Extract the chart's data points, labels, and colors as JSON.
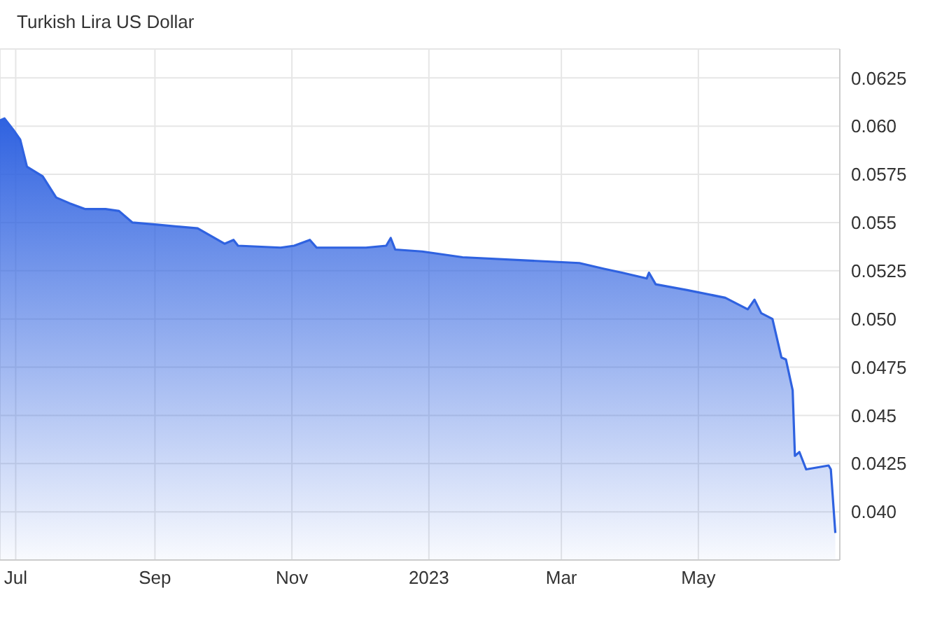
{
  "chart_data": {
    "type": "area",
    "title": "Turkish Lira US Dollar",
    "x": [
      "2022-06-24",
      "2022-06-26",
      "2022-06-30",
      "2022-07-03",
      "2022-07-06",
      "2022-07-13",
      "2022-07-19",
      "2022-07-25",
      "2022-08-01",
      "2022-08-10",
      "2022-08-16",
      "2022-08-22",
      "2022-09-01",
      "2022-09-20",
      "2022-09-26",
      "2022-10-02",
      "2022-10-06",
      "2022-10-08",
      "2022-10-27",
      "2022-11-02",
      "2022-11-09",
      "2022-11-12",
      "2022-12-04",
      "2022-12-13",
      "2022-12-15",
      "2022-12-17",
      "2022-12-29",
      "2023-01-16",
      "2023-03-09",
      "2023-03-20",
      "2023-03-28",
      "2023-04-08",
      "2023-04-09",
      "2023-04-12",
      "2023-04-26",
      "2023-05-13",
      "2023-05-23",
      "2023-05-26",
      "2023-05-29",
      "2023-06-03",
      "2023-06-07",
      "2023-06-09",
      "2023-06-12",
      "2023-06-13",
      "2023-06-15",
      "2023-06-18",
      "2023-06-23",
      "2023-06-28",
      "2023-06-29",
      "2023-07-01"
    ],
    "series": [
      {
        "color": "#2f62e0",
        "values": [
          0.0603,
          0.0604,
          0.0598,
          0.0593,
          0.0579,
          0.0574,
          0.0563,
          0.056,
          0.0557,
          0.0557,
          0.0556,
          0.055,
          0.0549,
          0.0547,
          0.0543,
          0.0539,
          0.0541,
          0.0538,
          0.0537,
          0.0538,
          0.0541,
          0.0537,
          0.0537,
          0.0538,
          0.0542,
          0.0536,
          0.0535,
          0.0532,
          0.0529,
          0.0526,
          0.0524,
          0.0521,
          0.0524,
          0.0518,
          0.0515,
          0.0511,
          0.0505,
          0.051,
          0.0503,
          0.05,
          0.048,
          0.0479,
          0.0463,
          0.0429,
          0.0431,
          0.0422,
          0.0423,
          0.0424,
          0.0422,
          0.0389
        ]
      }
    ],
    "xlim": [
      "2022-06-24",
      "2023-07-03"
    ],
    "xticks": [
      {
        "value": "2022-07-01",
        "label": "Jul"
      },
      {
        "value": "2022-09-01",
        "label": "Sep"
      },
      {
        "value": "2022-11-01",
        "label": "Nov"
      },
      {
        "value": "2023-01-01",
        "label": "2023"
      },
      {
        "value": "2023-03-01",
        "label": "Mar"
      },
      {
        "value": "2023-05-01",
        "label": "May"
      }
    ],
    "ylim": [
      0.0375,
      0.064
    ],
    "yticks": [
      {
        "value": 0.04,
        "label": "0.040"
      },
      0.0425,
      {
        "value": 0.045,
        "label": "0.045"
      },
      0.0475,
      {
        "value": 0.05,
        "label": "0.050"
      },
      0.0525,
      {
        "value": 0.055,
        "label": "0.055"
      },
      0.0575,
      {
        "value": 0.06,
        "label": "0.060"
      },
      0.0625
    ],
    "grid": true,
    "legend": false,
    "marker": "none",
    "line_style": "solid"
  }
}
